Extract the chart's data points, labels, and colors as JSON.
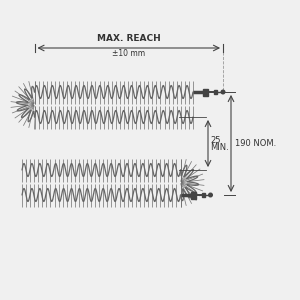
{
  "bg_color": "#f0f0f0",
  "line_color": "#444444",
  "coil_color": "#666666",
  "text_color": "#333333",
  "title_text": "MAX. REACH",
  "subtitle_text": "±10 mm",
  "dim1_text": "190 NOM.",
  "dim2_text": "25",
  "dim2b_text": "MIN.",
  "fig_width": 3.0,
  "fig_height": 3.0,
  "dpi": 100
}
